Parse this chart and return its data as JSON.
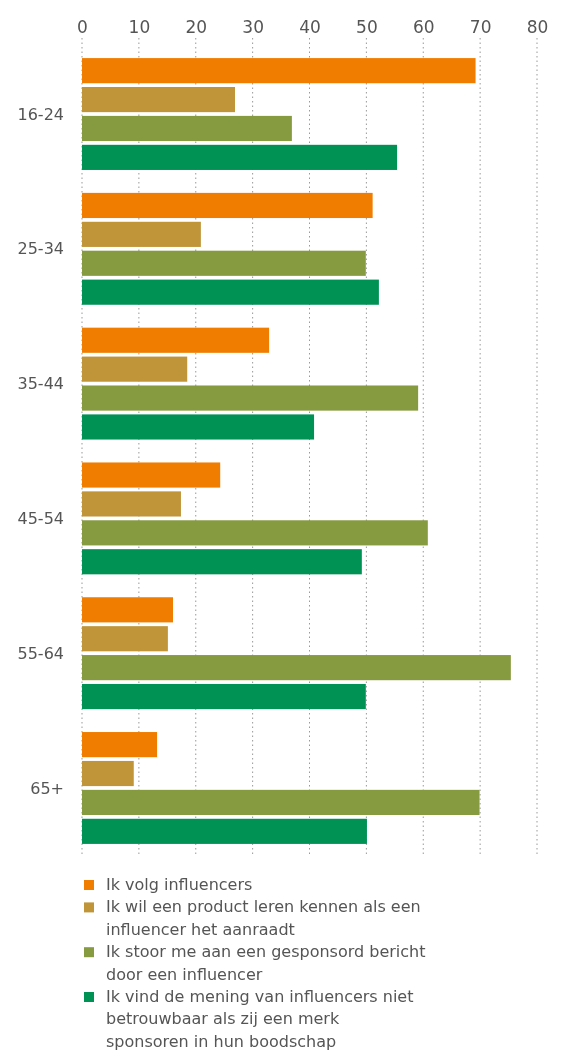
{
  "chart_data": {
    "type": "bar",
    "orientation": "horizontal",
    "categories": [
      "16-24",
      "25-34",
      "35-44",
      "45-54",
      "55-64",
      "65+"
    ],
    "series": [
      {
        "name": "Ik volg influencers",
        "color": "#f07d00",
        "values": [
          69.2,
          51.1,
          32.9,
          24.3,
          16.0,
          13.2
        ]
      },
      {
        "name": "Ik wil een product leren kennen als een influencer het aanraadt",
        "color": "#c0953a",
        "values": [
          26.9,
          20.9,
          18.5,
          17.4,
          15.1,
          9.1
        ]
      },
      {
        "name": "Ik stoor me aan een gesponsord bericht door een influencer",
        "color": "#869a3f",
        "values": [
          36.9,
          49.9,
          59.1,
          60.8,
          75.4,
          69.9
        ]
      },
      {
        "name": "Ik vind de mening van influencers niet betrouwbaar als zij een merk sponsoren in hun boodschap",
        "color": "#009155",
        "values": [
          55.4,
          52.2,
          40.8,
          49.2,
          49.9,
          50.1
        ]
      }
    ],
    "xlim": [
      0,
      80
    ],
    "xticks": [
      0,
      10,
      20,
      30,
      40,
      50,
      60,
      70,
      80
    ],
    "grid": "x",
    "legend": "bottom"
  }
}
